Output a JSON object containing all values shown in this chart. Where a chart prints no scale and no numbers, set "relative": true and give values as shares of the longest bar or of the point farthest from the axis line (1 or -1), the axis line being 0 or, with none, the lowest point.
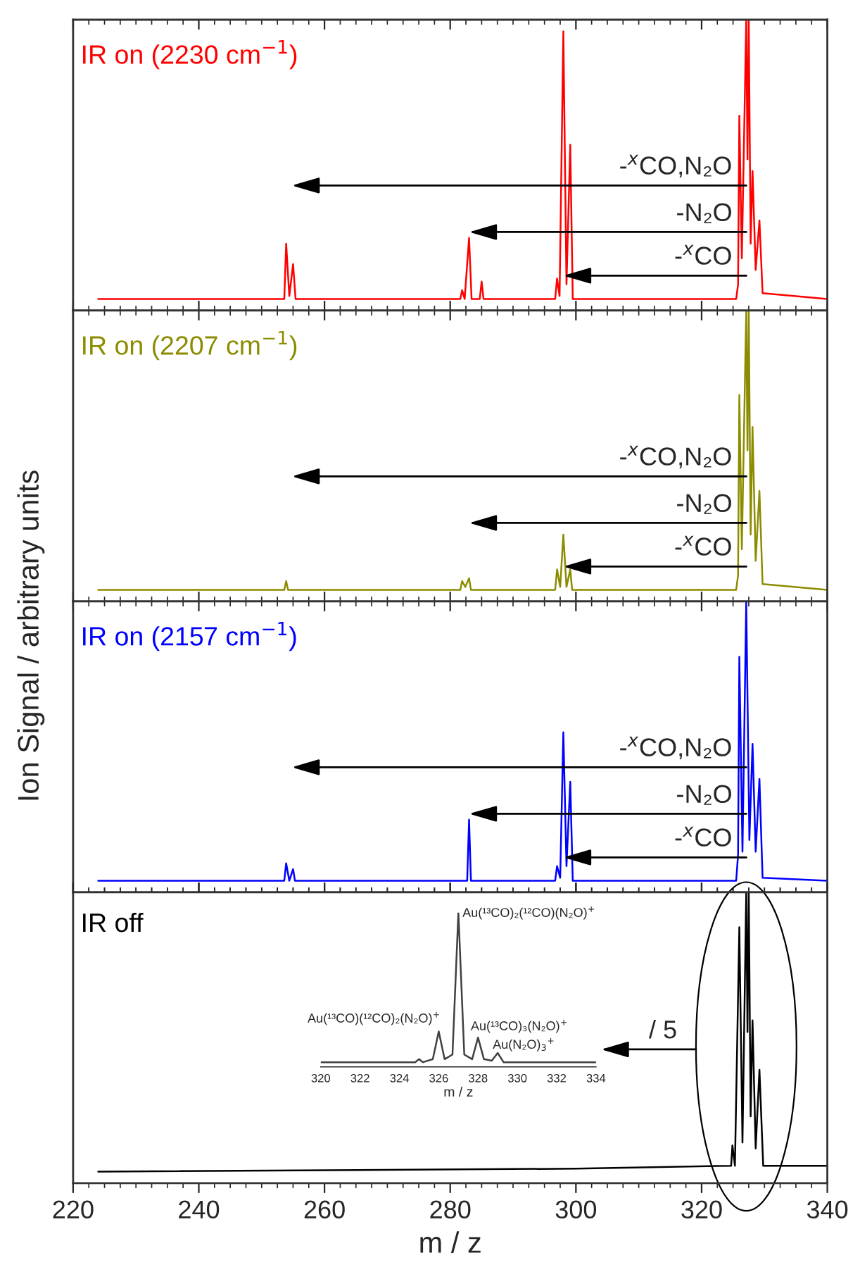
{
  "chart_data": [
    {
      "type": "line",
      "title": "IR on (2230 cm$^{−1}$)",
      "ylabel": "Ion Signal / arbitrary units",
      "relative": true,
      "xlim": [
        220,
        340
      ],
      "xticks": [
        220,
        240,
        260,
        280,
        300,
        320,
        340
      ],
      "tick_labels": false,
      "series": [
        {
          "color": "#ff0000",
          "x": [
            224,
            253.6,
            253.9,
            254.4,
            255.0,
            255.4,
            281.6,
            281.9,
            282.3,
            283.0,
            283.4,
            284.7,
            285.0,
            285.3,
            296.7,
            297.0,
            297.4,
            298.0,
            298.5,
            299.1,
            299.5,
            325.5,
            325.8,
            326.0,
            326.4,
            327.1,
            327.3,
            327.5,
            327.8,
            328.1,
            328.6,
            329.2,
            329.7,
            340
          ],
          "values": [
            0.04,
            0.04,
            0.23,
            0.05,
            0.16,
            0.04,
            0.04,
            0.07,
            0.04,
            0.25,
            0.04,
            0.04,
            0.1,
            0.04,
            0.04,
            0.11,
            0.05,
            0.96,
            0.09,
            0.57,
            0.04,
            0.04,
            0.09,
            0.67,
            0.18,
            1.0,
            0.52,
            1.0,
            0.23,
            0.48,
            0.14,
            0.31,
            0.06,
            0.04
          ]
        }
      ],
      "annotations": [
        "-$^{x}$CO,N₂O",
        "-N₂O",
        "-$^{x}$CO"
      ]
    },
    {
      "type": "line",
      "title": "IR on (2207 cm$^{−1}$)",
      "relative": true,
      "xlim": [
        220,
        340
      ],
      "xticks": [
        220,
        240,
        260,
        280,
        300,
        320,
        340
      ],
      "tick_labels": false,
      "series": [
        {
          "color": "#8c8c00",
          "x": [
            224,
            253.6,
            253.9,
            254.2,
            281.6,
            281.9,
            282.4,
            283.0,
            283.3,
            296.7,
            297.0,
            297.5,
            298.0,
            298.5,
            299.1,
            299.4,
            325.5,
            325.8,
            326.0,
            326.4,
            327.1,
            327.3,
            327.5,
            327.8,
            328.1,
            328.6,
            329.2,
            329.7,
            340
          ],
          "values": [
            0.04,
            0.04,
            0.07,
            0.04,
            0.04,
            0.07,
            0.05,
            0.08,
            0.04,
            0.04,
            0.11,
            0.05,
            0.23,
            0.05,
            0.11,
            0.04,
            0.04,
            0.09,
            0.71,
            0.18,
            1.0,
            0.52,
            1.0,
            0.23,
            0.6,
            0.14,
            0.38,
            0.06,
            0.04
          ]
        }
      ],
      "annotations": [
        "-$^{x}$CO,N₂O",
        "-N₂O",
        "-$^{x}$CO"
      ]
    },
    {
      "type": "line",
      "title": "IR on (2157 cm$^{−1}$)",
      "relative": true,
      "xlim": [
        220,
        340
      ],
      "xticks": [
        220,
        240,
        260,
        280,
        300,
        320,
        340
      ],
      "tick_labels": false,
      "series": [
        {
          "color": "#0000ff",
          "x": [
            224,
            253.6,
            253.9,
            254.4,
            255.0,
            255.3,
            282.7,
            283.0,
            283.3,
            296.7,
            297.0,
            297.5,
            298.0,
            298.5,
            299.1,
            299.5,
            325.5,
            325.8,
            326.0,
            326.5,
            327.1,
            327.6,
            328.1,
            328.6,
            329.2,
            329.7,
            340
          ],
          "values": [
            0.04,
            0.04,
            0.1,
            0.04,
            0.08,
            0.04,
            0.04,
            0.25,
            0.04,
            0.04,
            0.09,
            0.05,
            0.55,
            0.09,
            0.38,
            0.04,
            0.04,
            0.13,
            0.81,
            0.14,
            1.0,
            0.18,
            0.51,
            0.14,
            0.39,
            0.05,
            0.04
          ]
        }
      ],
      "annotations": [
        "-$^{x}$CO,N₂O",
        "-N₂O",
        "-$^{x}$CO"
      ]
    },
    {
      "type": "line",
      "title": "IR off",
      "xlabel": "m / z",
      "relative": true,
      "xlim": [
        220,
        340
      ],
      "xticks": [
        220,
        240,
        260,
        280,
        300,
        320,
        340
      ],
      "tick_labels": "x",
      "series": [
        {
          "color": "#000000",
          "x": [
            224,
            300,
            324.7,
            324.9,
            325.3,
            326.0,
            326.5,
            327.1,
            327.3,
            327.5,
            327.8,
            328.1,
            328.6,
            329.2,
            329.8,
            340
          ],
          "values": [
            0.04,
            0.05,
            0.06,
            0.13,
            0.06,
            0.88,
            0.14,
            1.0,
            0.52,
            1.0,
            0.23,
            0.56,
            0.12,
            0.39,
            0.06,
            0.06
          ]
        }
      ],
      "annotations": [
        "/ 5"
      ]
    },
    {
      "type": "line",
      "xlabel": "m / z",
      "relative": true,
      "xlim": [
        320,
        334
      ],
      "xticks": [
        320,
        322,
        324,
        326,
        328,
        330,
        332,
        334
      ],
      "tick_labels": "x",
      "series": [
        {
          "color": "#404040",
          "x": [
            320,
            324.8,
            325.0,
            325.2,
            325.7,
            326.0,
            326.3,
            326.7,
            327.0,
            327.3,
            327.7,
            328.0,
            328.3,
            328.7,
            329.0,
            329.3,
            334
          ],
          "values": [
            0.03,
            0.03,
            0.05,
            0.03,
            0.05,
            0.23,
            0.05,
            0.08,
            1.0,
            0.08,
            0.05,
            0.19,
            0.05,
            0.04,
            0.09,
            0.03,
            0.03
          ]
        }
      ],
      "annotations": [
        "Au(¹³CO)₂(¹²CO)(N₂O)$^{+}$",
        "Au(¹³CO)(¹²CO)₂(N₂O)$^{+}$",
        "Au(¹³CO)₃(N₂O)$^{+}$",
        "Au(N₂O)$_{3}$$^{+}$"
      ]
    }
  ]
}
